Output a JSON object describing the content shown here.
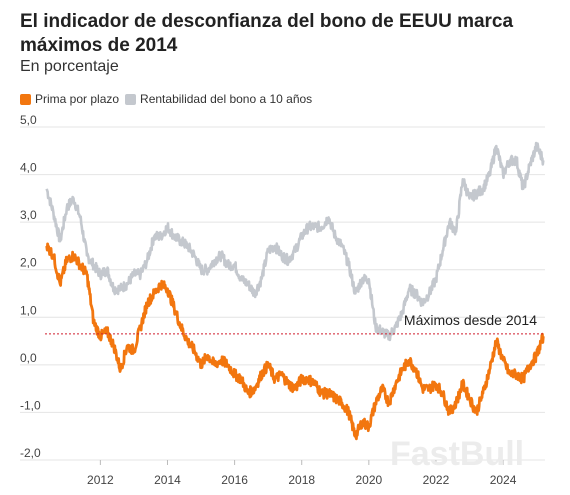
{
  "title": "El indicador de desconfianza del bono de EEUU marca máximos de 2014",
  "subtitle": "En porcentaje",
  "watermark": "FastBull",
  "colors": {
    "prima": "#f2760f",
    "rentabilidad": "#c4c8ce",
    "reference": "#d01c2c",
    "grid": "#e4e4e4"
  },
  "chart_data": {
    "type": "line",
    "xlim": [
      2010.35,
      2025.25
    ],
    "ylim": [
      -2.0,
      5.0
    ],
    "y_ticks": [
      5.0,
      4.0,
      3.0,
      2.0,
      1.0,
      0.0,
      -1.0,
      -2.0
    ],
    "y_tick_labels": [
      "5,0",
      "4,0",
      "3,0",
      "2,0",
      "1,0",
      "0,0",
      "-1,0",
      "-2,0"
    ],
    "x_ticks": [
      2012,
      2014,
      2016,
      2018,
      2020,
      2022,
      2024
    ],
    "x_tick_labels": [
      "2012",
      "2014",
      "2016",
      "2018",
      "2020",
      "2022",
      "2024"
    ],
    "grid": true,
    "legend_position": "top-left",
    "series": [
      {
        "name": "Rentabilidad del bono a 10 años",
        "color": "#c4c8ce",
        "x": [
          2010.4,
          2010.6,
          2010.8,
          2011.0,
          2011.2,
          2011.4,
          2011.6,
          2011.8,
          2012.0,
          2012.2,
          2012.4,
          2012.6,
          2012.8,
          2013.0,
          2013.2,
          2013.4,
          2013.6,
          2013.8,
          2014.0,
          2014.2,
          2014.4,
          2014.6,
          2014.8,
          2015.0,
          2015.2,
          2015.4,
          2015.6,
          2015.8,
          2016.0,
          2016.2,
          2016.4,
          2016.6,
          2016.8,
          2017.0,
          2017.2,
          2017.4,
          2017.6,
          2017.8,
          2018.0,
          2018.2,
          2018.4,
          2018.6,
          2018.8,
          2019.0,
          2019.2,
          2019.4,
          2019.6,
          2019.8,
          2020.0,
          2020.2,
          2020.4,
          2020.6,
          2020.8,
          2021.0,
          2021.2,
          2021.4,
          2021.6,
          2021.8,
          2022.0,
          2022.2,
          2022.4,
          2022.6,
          2022.8,
          2023.0,
          2023.2,
          2023.4,
          2023.6,
          2023.8,
          2024.0,
          2024.2,
          2024.4,
          2024.6,
          2024.8,
          2025.0,
          2025.2
        ],
        "values": [
          3.7,
          3.2,
          2.6,
          3.3,
          3.5,
          3.1,
          2.3,
          2.1,
          1.9,
          2.0,
          1.6,
          1.6,
          1.7,
          1.9,
          1.9,
          2.2,
          2.7,
          2.7,
          2.9,
          2.7,
          2.6,
          2.5,
          2.3,
          2.0,
          2.0,
          2.2,
          2.3,
          2.1,
          2.1,
          1.8,
          1.7,
          1.5,
          1.8,
          2.4,
          2.5,
          2.3,
          2.2,
          2.4,
          2.7,
          2.9,
          2.9,
          2.9,
          3.1,
          2.7,
          2.5,
          2.1,
          1.5,
          1.8,
          1.8,
          0.8,
          0.7,
          0.6,
          0.8,
          1.1,
          1.6,
          1.5,
          1.3,
          1.5,
          1.8,
          2.4,
          3.0,
          2.8,
          3.9,
          3.5,
          3.6,
          3.7,
          4.0,
          4.6,
          4.0,
          4.3,
          4.3,
          3.7,
          4.2,
          4.6,
          4.3
        ]
      },
      {
        "name": "Prima por plazo",
        "color": "#f2760f",
        "x": [
          2010.4,
          2010.6,
          2010.8,
          2011.0,
          2011.2,
          2011.4,
          2011.6,
          2011.8,
          2012.0,
          2012.2,
          2012.4,
          2012.6,
          2012.8,
          2013.0,
          2013.2,
          2013.4,
          2013.6,
          2013.8,
          2014.0,
          2014.2,
          2014.4,
          2014.6,
          2014.8,
          2015.0,
          2015.2,
          2015.4,
          2015.6,
          2015.8,
          2016.0,
          2016.2,
          2016.4,
          2016.6,
          2016.8,
          2017.0,
          2017.2,
          2017.4,
          2017.6,
          2017.8,
          2018.0,
          2018.2,
          2018.4,
          2018.6,
          2018.8,
          2019.0,
          2019.2,
          2019.4,
          2019.6,
          2019.8,
          2020.0,
          2020.2,
          2020.4,
          2020.6,
          2020.8,
          2021.0,
          2021.2,
          2021.4,
          2021.6,
          2021.8,
          2022.0,
          2022.2,
          2022.4,
          2022.6,
          2022.8,
          2023.0,
          2023.2,
          2023.4,
          2023.6,
          2023.8,
          2024.0,
          2024.2,
          2024.4,
          2024.6,
          2024.8,
          2025.0,
          2025.2
        ],
        "values": [
          2.5,
          2.3,
          1.7,
          2.2,
          2.3,
          2.1,
          1.9,
          0.9,
          0.6,
          0.7,
          0.4,
          -0.1,
          0.4,
          0.3,
          0.8,
          1.3,
          1.5,
          1.7,
          1.6,
          1.2,
          0.8,
          0.5,
          0.3,
          0.0,
          0.2,
          0.0,
          0.1,
          0.0,
          -0.2,
          -0.3,
          -0.6,
          -0.5,
          -0.2,
          0.0,
          -0.3,
          -0.2,
          -0.4,
          -0.5,
          -0.3,
          -0.3,
          -0.4,
          -0.6,
          -0.6,
          -0.7,
          -0.8,
          -1.0,
          -1.5,
          -1.2,
          -1.3,
          -0.8,
          -0.5,
          -0.8,
          -0.4,
          -0.1,
          0.1,
          -0.1,
          -0.5,
          -0.5,
          -0.4,
          -0.6,
          -1.0,
          -0.8,
          -0.4,
          -0.7,
          -1.0,
          -0.6,
          -0.1,
          0.5,
          0.1,
          -0.2,
          -0.2,
          -0.3,
          0.0,
          0.2,
          0.6
        ]
      }
    ],
    "reference_line": {
      "y": 0.65,
      "label": "Máximos desde 2014",
      "color": "#d01c2c"
    }
  }
}
